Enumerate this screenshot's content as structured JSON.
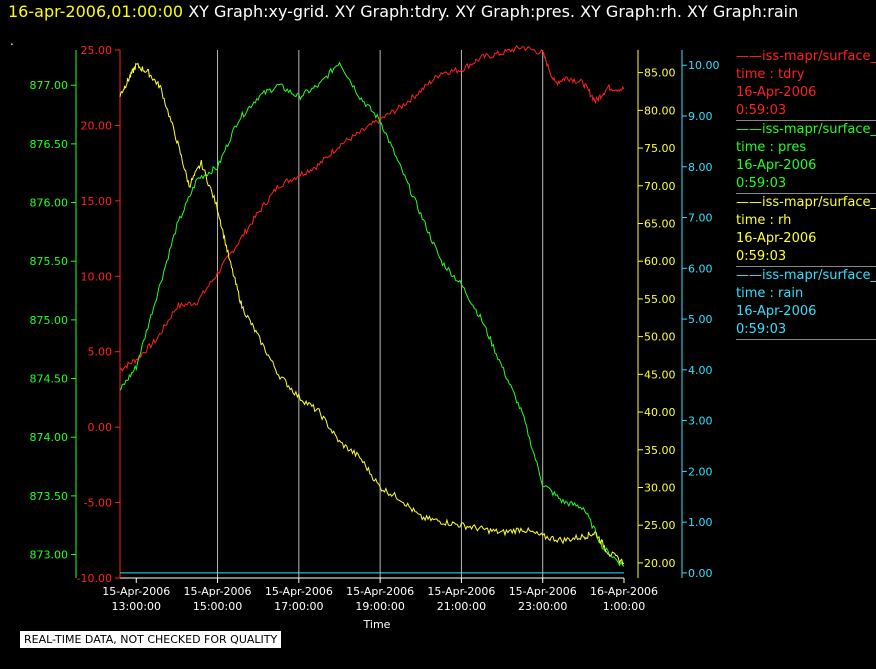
{
  "header": {
    "timestamp": "16-apr-2006,01:00:00",
    "graphs": "XY Graph:xy-grid.  XY Graph:tdry.  XY Graph:pres.  XY Graph:rh.  XY Graph:rain"
  },
  "dot": ".",
  "notice": "REAL-TIME DATA, NOT CHECKED FOR QUALITY",
  "legend": [
    {
      "name": "iss-mapr/surface_",
      "pair": "time : tdry",
      "date": "16-Apr-2006",
      "time": "0:59:03",
      "color": "#ff2020"
    },
    {
      "name": "iss-mapr/surface_",
      "pair": "time : pres",
      "date": "16-Apr-2006",
      "time": "0:59:03",
      "color": "#20ff20"
    },
    {
      "name": "iss-mapr/surface_",
      "pair": "time : rh",
      "date": "16-Apr-2006",
      "time": "0:59:03",
      "color": "#ffff30"
    },
    {
      "name": "iss-mapr/surface_",
      "pair": "time : rain",
      "date": "16-Apr-2006",
      "time": "0:59:03",
      "color": "#30e0ff"
    }
  ],
  "chart_data": {
    "type": "line",
    "xlabel": "Time",
    "x_ticks": [
      [
        "15-Apr-2006",
        "13:00:00"
      ],
      [
        "15-Apr-2006",
        "15:00:00"
      ],
      [
        "15-Apr-2006",
        "17:00:00"
      ],
      [
        "15-Apr-2006",
        "19:00:00"
      ],
      [
        "15-Apr-2006",
        "21:00:00"
      ],
      [
        "15-Apr-2006",
        "23:00:00"
      ],
      [
        "16-Apr-2006",
        "1:00:00"
      ]
    ],
    "x_unit": "hours since 15-Apr-2006 00:00",
    "xlim": [
      12.6,
      25.0
    ],
    "grid": "vertical",
    "axes": {
      "tdry": {
        "ticks": [
          "25.00",
          "20.00",
          "15.00",
          "10.00",
          "5.00",
          "0.00",
          "-5.00",
          "-10.00"
        ],
        "lim": [
          -10,
          25
        ],
        "color": "#ff2020"
      },
      "pres": {
        "ticks": [
          "877.00",
          "876.50",
          "876.00",
          "875.50",
          "875.00",
          "874.50",
          "874.00",
          "873.50",
          "873.00"
        ],
        "lim": [
          872.8,
          877.3
        ],
        "color": "#20ff20"
      },
      "rh": {
        "ticks": [
          "85.00",
          "80.00",
          "75.00",
          "70.00",
          "65.00",
          "60.00",
          "55.00",
          "50.00",
          "45.00",
          "40.00",
          "35.00",
          "30.00",
          "25.00",
          "20.00"
        ],
        "lim": [
          18,
          88
        ],
        "color": "#ffff30"
      },
      "rain": {
        "ticks": [
          "10.00",
          "9.00",
          "8.00",
          "7.00",
          "6.00",
          "5.00",
          "4.00",
          "3.00",
          "2.00",
          "1.00",
          "0.00"
        ],
        "lim": [
          -0.1,
          10.3
        ],
        "color": "#30e0ff"
      }
    },
    "series": [
      {
        "name": "tdry",
        "axis": "tdry",
        "x": [
          12.6,
          13.0,
          13.5,
          14.0,
          14.5,
          15.0,
          15.5,
          16.0,
          16.5,
          17.0,
          17.5,
          18.0,
          18.5,
          19.0,
          19.5,
          20.0,
          20.5,
          21.0,
          21.5,
          22.0,
          22.5,
          23.0,
          23.3,
          23.6,
          24.0,
          24.3,
          24.6,
          25.0
        ],
        "y": [
          3.8,
          4.5,
          5.8,
          8.0,
          8.3,
          10.2,
          12.2,
          14.2,
          16.0,
          16.7,
          17.4,
          18.7,
          19.5,
          20.4,
          21.2,
          22.3,
          23.5,
          23.7,
          24.5,
          24.8,
          25.2,
          24.8,
          22.8,
          23.2,
          22.8,
          21.6,
          22.5,
          22.4
        ]
      },
      {
        "name": "pres",
        "axis": "pres",
        "x": [
          12.6,
          13.0,
          13.5,
          14.0,
          14.5,
          15.0,
          15.5,
          16.0,
          16.5,
          17.0,
          17.5,
          18.0,
          18.5,
          19.0,
          19.5,
          20.0,
          20.5,
          21.0,
          21.5,
          22.0,
          22.5,
          23.0,
          23.5,
          24.0,
          24.5,
          25.0
        ],
        "y": [
          874.4,
          874.6,
          875.2,
          875.8,
          876.2,
          876.3,
          876.7,
          876.9,
          877.0,
          876.9,
          877.0,
          877.2,
          876.9,
          876.7,
          876.3,
          875.9,
          875.5,
          875.3,
          875.0,
          874.6,
          874.2,
          873.6,
          873.45,
          873.4,
          873.05,
          872.9
        ]
      },
      {
        "name": "rh",
        "axis": "rh",
        "x": [
          12.6,
          12.8,
          13.0,
          13.3,
          13.6,
          14.0,
          14.3,
          14.6,
          15.0,
          15.3,
          15.6,
          16.0,
          16.5,
          17.0,
          17.5,
          18.0,
          18.5,
          19.0,
          19.5,
          20.0,
          20.5,
          21.0,
          21.5,
          22.0,
          22.5,
          23.0,
          23.5,
          24.0,
          24.3,
          24.6,
          25.0
        ],
        "y": [
          82.0,
          84.0,
          86.0,
          85.0,
          83.0,
          76.0,
          70.0,
          73.0,
          67.0,
          60.0,
          54.0,
          50.0,
          45.0,
          42.0,
          40.0,
          36.0,
          34.0,
          30.0,
          28.5,
          26.0,
          25.5,
          25.0,
          24.5,
          24.0,
          24.5,
          23.5,
          23.0,
          23.5,
          24.0,
          21.5,
          20.0
        ]
      },
      {
        "name": "rain",
        "axis": "rain",
        "x": [
          12.6,
          25.0
        ],
        "y": [
          0.0,
          0.0
        ]
      }
    ]
  }
}
